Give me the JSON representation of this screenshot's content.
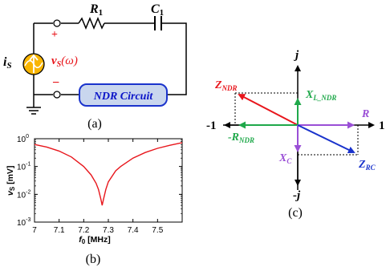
{
  "circuit": {
    "source_label": "i",
    "source_sub": "S",
    "voltage_label": "v",
    "voltage_sub": "S",
    "voltage_arg": "(ω)",
    "plus": "+",
    "minus": "−",
    "r_label": "R",
    "r_sub": "1",
    "c_label": "C",
    "c_sub": "1",
    "ndr_box": "NDR Circuit",
    "caption": "(a)"
  },
  "plot": {
    "caption": "(b)",
    "ylabel_main": "v",
    "ylabel_sub": "S",
    "ylabel_unit": " [mV]",
    "xlabel_main": "f",
    "xlabel_sub": "0",
    "xlabel_unit": " [MHz]",
    "y_ticks": [
      {
        "base": "10",
        "exp": "0"
      },
      {
        "base": "10",
        "exp": "-1"
      },
      {
        "base": "10",
        "exp": "-2"
      },
      {
        "base": "10",
        "exp": "-3"
      }
    ],
    "x_ticks": [
      "7",
      "7.1",
      "7.2",
      "7.3",
      "7.4",
      "7.5"
    ],
    "curve_color": "#e8161c"
  },
  "chart_data": {
    "type": "line",
    "title": "",
    "xlabel": "f0 [MHz]",
    "ylabel": "vS [mV]",
    "xlim": [
      7.0,
      7.6
    ],
    "ylim": [
      0.001,
      1
    ],
    "y_scale": "log",
    "grid": false,
    "series": [
      {
        "x": [
          7.0,
          7.05,
          7.1,
          7.15,
          7.2,
          7.23,
          7.25,
          7.26,
          7.27,
          7.275,
          7.28,
          7.29,
          7.3,
          7.33,
          7.35,
          7.4,
          7.45,
          7.5,
          7.55,
          7.6
        ],
        "y": [
          0.62,
          0.5,
          0.36,
          0.22,
          0.1,
          0.05,
          0.025,
          0.015,
          0.0065,
          0.004,
          0.0065,
          0.015,
          0.028,
          0.07,
          0.1,
          0.2,
          0.32,
          0.45,
          0.58,
          0.72
        ]
      }
    ]
  },
  "phasor": {
    "caption": "(c)",
    "j_top": "j",
    "j_bottom": "-j",
    "neg_one": "-1",
    "pos_one": "1",
    "z_ndr_main": "Z",
    "z_ndr_sub": "NDR",
    "xl_main": "X",
    "xl_sub": "L_NDR",
    "r_text": "R",
    "neg_r_main": "-R",
    "neg_r_sub": "NDR",
    "xc_main": "X",
    "xc_sub": "C",
    "z_rc_main": "Z",
    "z_rc_sub": "RC",
    "colors": {
      "z_ndr": "#e8161c",
      "xl": "#1fa84a",
      "r": "#9a4fd6",
      "neg_r": "#1fa84a",
      "xc": "#9a4fd6",
      "z_rc": "#1a33cc"
    }
  }
}
